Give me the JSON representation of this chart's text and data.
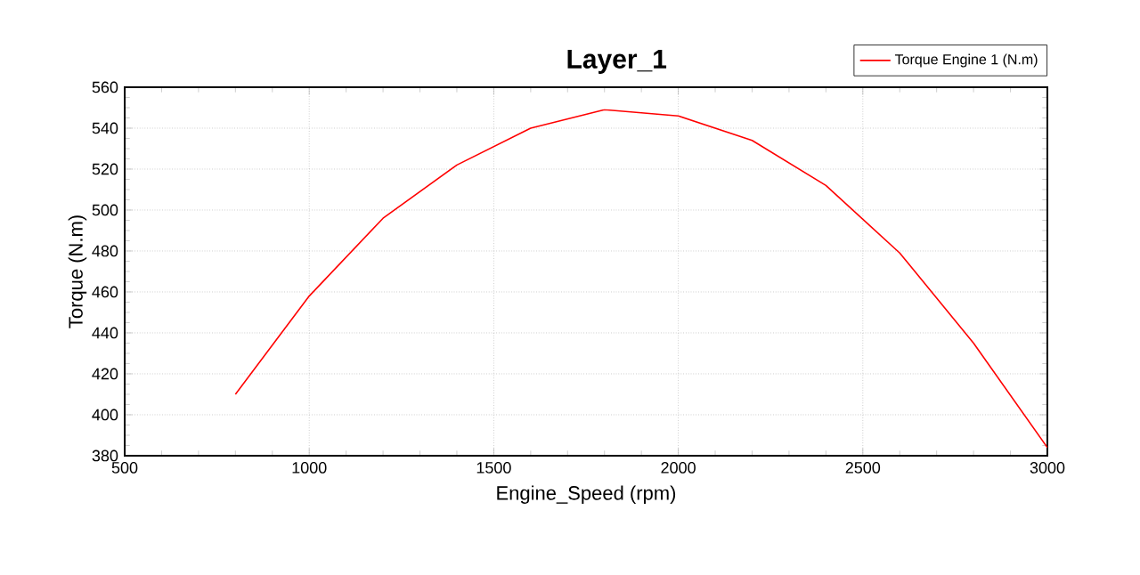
{
  "chart_data": {
    "type": "line",
    "title": "Layer_1",
    "xlabel": "Engine_Speed (rpm)",
    "ylabel": "Torque (N.m)",
    "x": [
      800,
      1000,
      1200,
      1400,
      1600,
      1800,
      2000,
      2200,
      2400,
      2600,
      2800,
      3000
    ],
    "series": [
      {
        "name": "Torque Engine 1 (N.m)",
        "color": "#ff0000",
        "values": [
          410,
          458,
          496,
          522,
          540,
          549,
          546,
          534,
          512,
          479,
          435,
          384
        ]
      }
    ],
    "xlim": [
      500,
      3000
    ],
    "xticks": [
      500,
      1000,
      1500,
      2000,
      2500,
      3000
    ],
    "ylim": [
      380,
      560
    ],
    "yticks": [
      380,
      400,
      420,
      440,
      460,
      480,
      500,
      520,
      540,
      560
    ],
    "grid": true,
    "legend": "top right",
    "marker": "none",
    "line_style": "solid"
  }
}
